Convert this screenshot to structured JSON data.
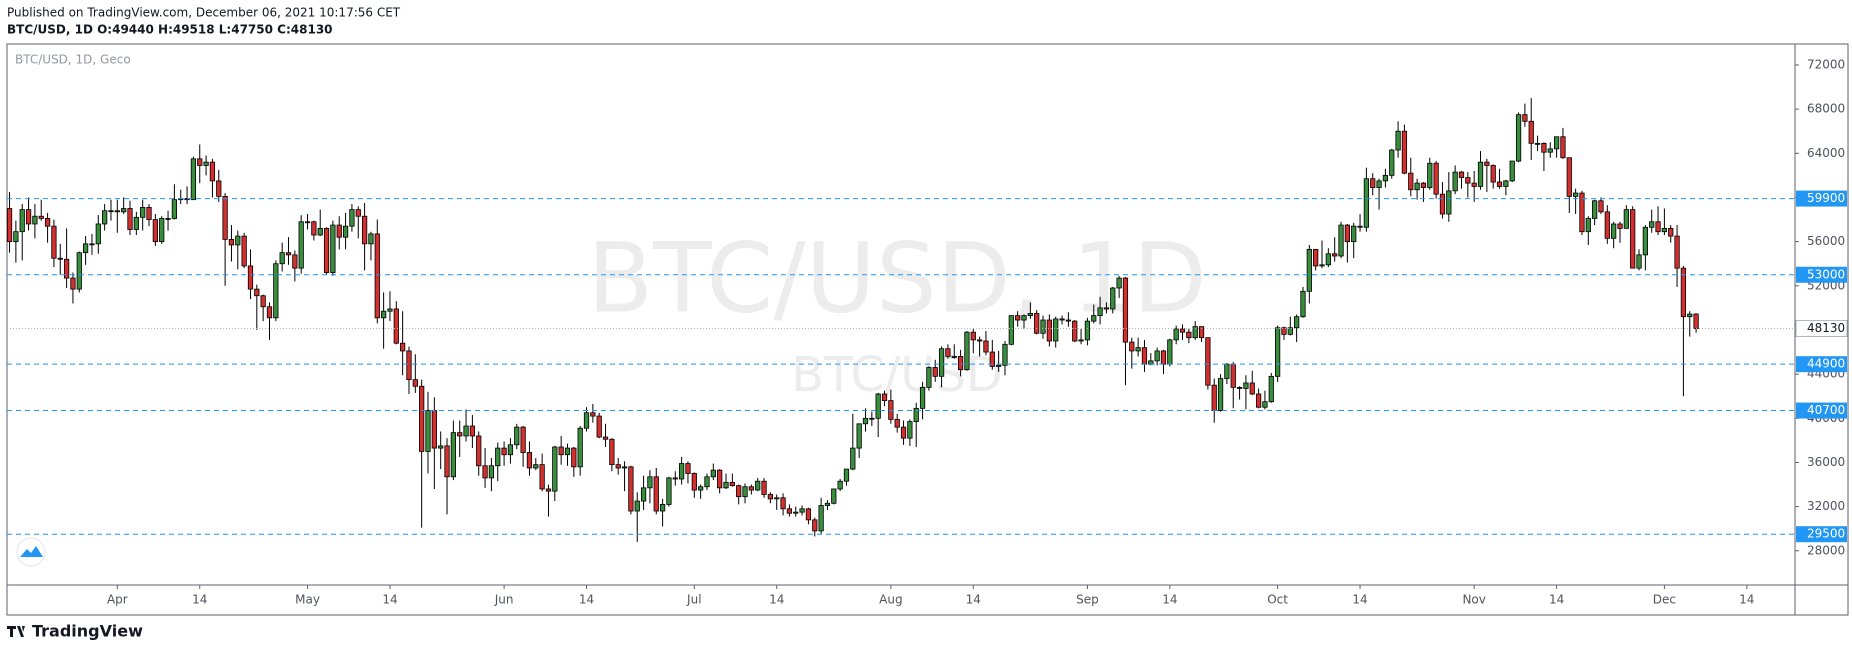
{
  "header": {
    "published": "Published on TradingView.com, December 06, 2021 10:17:56 CET",
    "ohlc_line": "BTC/USD, 1D  O:49440 H:49518 L:47750 C:48130"
  },
  "footer": {
    "brand": "TradingView"
  },
  "chart_data": {
    "type": "candlestick",
    "legend_text": "BTC/USD, 1D, Geco",
    "watermark": "BTC/USD, 1D",
    "watermark_sub": "BTC/USD",
    "up_color": "#388e3c",
    "down_color": "#d32f2f",
    "border_color": "#000000",
    "level_color": "#2196f3",
    "ylim": [
      24900,
      73900
    ],
    "yticks": [
      28000,
      32000,
      36000,
      40000,
      44000,
      48000,
      52000,
      56000,
      60000,
      64000,
      68000,
      72000
    ],
    "xlim": [
      -0.4,
      281.6
    ],
    "xticks": [
      {
        "value": 17,
        "label": "Apr"
      },
      {
        "value": 30,
        "label": "14"
      },
      {
        "value": 47,
        "label": "May"
      },
      {
        "value": 60,
        "label": "14"
      },
      {
        "value": 78,
        "label": "Jun"
      },
      {
        "value": 91,
        "label": "14"
      },
      {
        "value": 108,
        "label": "Jul"
      },
      {
        "value": 121,
        "label": "14"
      },
      {
        "value": 139,
        "label": "Aug"
      },
      {
        "value": 152,
        "label": "14"
      },
      {
        "value": 170,
        "label": "Sep"
      },
      {
        "value": 183,
        "label": "14"
      },
      {
        "value": 200,
        "label": "Oct"
      },
      {
        "value": 213,
        "label": "14"
      },
      {
        "value": 231,
        "label": "Nov"
      },
      {
        "value": 244,
        "label": "14"
      },
      {
        "value": 261,
        "label": "Dec"
      },
      {
        "value": 274,
        "label": "14"
      }
    ],
    "levels": [
      59900,
      53000,
      44900,
      40700,
      29500
    ],
    "open": [
      59000,
      56000,
      56900,
      58900,
      57600,
      58300,
      58100,
      57400,
      54500,
      54400,
      52700,
      51700,
      55000,
      55800,
      55800,
      57600,
      58800,
      58800,
      58700,
      59000,
      57100,
      58200,
      59100,
      58000,
      56000,
      58100,
      58100,
      59800,
      59900,
      59800,
      63500,
      62900,
      63200,
      61500,
      60100,
      56200,
      55700,
      56500,
      53800,
      51700,
      51100,
      50100,
      49100,
      54000,
      55000,
      54800,
      53600,
      57800,
      57800,
      56600,
      57200,
      53200,
      57500,
      56400,
      57400,
      58900,
      58300,
      55800,
      56700,
      49100,
      49700,
      49900,
      46800,
      46100,
      43500,
      42900,
      37000,
      40700,
      37300,
      37500,
      34700,
      38700,
      38400,
      39300,
      38400,
      35700,
      34600,
      35700,
      37300,
      36700,
      37600,
      39200,
      36900,
      35500,
      35800,
      33600,
      33400,
      37400,
      36700,
      37300,
      35600,
      39100,
      40500,
      40200,
      38300,
      38100,
      35800,
      35500,
      35600,
      31600,
      32500,
      33700,
      34700,
      31600,
      32200,
      34600,
      34500,
      35900,
      35000,
      33500,
      33800,
      34700,
      35300,
      33700,
      34200,
      33900,
      32900,
      33800,
      33500,
      34300,
      33100,
      32700,
      32800,
      31800,
      31400,
      31500,
      31800,
      30800,
      29800,
      32100,
      32300,
      33600,
      34300,
      35400,
      37300,
      39500,
      40000,
      40000,
      42200,
      41600,
      39900,
      39200,
      38200,
      39700,
      40900,
      42800,
      44600,
      43800,
      46300,
      45600,
      45600,
      44400,
      47800,
      47100,
      47000,
      46000,
      44700,
      44800,
      46700,
      49300,
      48900,
      49300,
      49500,
      47700,
      48900,
      47000,
      49000,
      48900,
      48800,
      47000,
      47100,
      48800,
      49300,
      50000,
      49900,
      51800,
      52700,
      46900,
      46100,
      46400,
      44900,
      45200,
      46100,
      44900,
      47100,
      48100,
      47800,
      47300,
      48300,
      47300,
      43000,
      40700,
      43600,
      44900,
      42800,
      42700,
      43200,
      42200,
      41000,
      41500,
      43800,
      48200,
      47600,
      48200,
      49200,
      51500,
      55300,
      53800,
      53900,
      54900,
      54700,
      57500,
      56000,
      57400,
      57300,
      61700,
      60900,
      61500,
      62000,
      64300,
      66000,
      62200,
      60700,
      61300,
      60900,
      63100,
      60300,
      58500,
      60600,
      62300,
      61800,
      61300,
      61000,
      63200,
      62900,
      61400,
      61000,
      61500,
      63300,
      67500,
      66900,
      64900,
      64900,
      64100,
      64400,
      65500,
      63600,
      60100,
      60400,
      56900,
      58100,
      59700,
      58700,
      56300,
      57600,
      57200,
      58900,
      53600,
      54800,
      57300,
      57800,
      56900,
      57200,
      56500,
      53600,
      49200,
      49440
    ],
    "high": [
      60500,
      57900,
      59400,
      60000,
      59400,
      59800,
      58600,
      58000,
      55800,
      57200,
      53200,
      55100,
      56500,
      56700,
      58400,
      59400,
      59800,
      59800,
      60000,
      59700,
      58700,
      59800,
      59400,
      58500,
      58300,
      58800,
      61200,
      60700,
      61000,
      63700,
      64800,
      63800,
      63500,
      62500,
      60400,
      57500,
      57000,
      56800,
      55300,
      52100,
      51200,
      50500,
      54300,
      55900,
      56400,
      55200,
      58400,
      58500,
      57900,
      58900,
      57300,
      57900,
      58300,
      58600,
      59400,
      59200,
      59500,
      56900,
      58000,
      51400,
      51500,
      50600,
      49700,
      46500,
      45800,
      43500,
      42400,
      41900,
      38800,
      38200,
      39800,
      39800,
      40800,
      40300,
      38800,
      37300,
      36400,
      37800,
      37900,
      38200,
      39500,
      39300,
      37900,
      36400,
      36800,
      34000,
      37500,
      38400,
      37700,
      37400,
      39300,
      41000,
      41300,
      40500,
      39500,
      38200,
      36400,
      36100,
      35700,
      33300,
      34800,
      35300,
      35500,
      32700,
      34700,
      35200,
      36500,
      36100,
      35100,
      34000,
      35000,
      35900,
      35400,
      35000,
      35000,
      34000,
      34100,
      34000,
      34600,
      34600,
      33300,
      33100,
      33200,
      32200,
      32000,
      32100,
      31900,
      31000,
      32800,
      32600,
      33600,
      34500,
      35400,
      40400,
      39500,
      40900,
      40600,
      42300,
      42500,
      42600,
      40400,
      39800,
      39900,
      41400,
      43300,
      44700,
      45300,
      46500,
      46700,
      46700,
      46200,
      47900,
      48100,
      47400,
      47900,
      47100,
      46100,
      47000,
      49300,
      49700,
      49400,
      50500,
      49800,
      49300,
      49400,
      49200,
      49300,
      49600,
      48900,
      48100,
      49100,
      50300,
      51000,
      50500,
      51900,
      52900,
      52800,
      47300,
      47300,
      47100,
      45900,
      46400,
      46200,
      47200,
      48400,
      48500,
      48100,
      48800,
      48300,
      47300,
      43600,
      44000,
      45000,
      45100,
      42900,
      43900,
      44300,
      42700,
      42500,
      44100,
      48400,
      48300,
      49200,
      49400,
      51900,
      55700,
      55300,
      56100,
      55400,
      56400,
      57800,
      57600,
      57700,
      58500,
      62700,
      62200,
      61700,
      62600,
      64400,
      66900,
      66600,
      63600,
      61700,
      61400,
      63600,
      63300,
      61400,
      62300,
      62900,
      62400,
      62300,
      62400,
      64200,
      63500,
      63000,
      62600,
      61600,
      63300,
      67700,
      68500,
      69000,
      65600,
      65000,
      65000,
      65500,
      66300,
      63600,
      60800,
      60600,
      58300,
      59800,
      60000,
      59300,
      57800,
      57800,
      59300,
      59200,
      55300,
      57500,
      58900,
      59200,
      59000,
      57500,
      57500,
      53800,
      49700,
      49518
    ],
    "low": [
      55000,
      54100,
      54300,
      57000,
      56300,
      57900,
      55900,
      53700,
      53000,
      51800,
      50400,
      51400,
      53900,
      54800,
      54900,
      57000,
      57900,
      56800,
      58500,
      56600,
      56600,
      57000,
      57400,
      55600,
      55800,
      57000,
      58000,
      59400,
      59400,
      59800,
      61300,
      62000,
      60000,
      59600,
      52000,
      54200,
      53500,
      53600,
      50800,
      48000,
      48800,
      47100,
      48800,
      53300,
      53900,
      52400,
      53100,
      57100,
      56100,
      56500,
      53000,
      52900,
      55300,
      55300,
      56900,
      56300,
      53400,
      54300,
      48600,
      46300,
      48800,
      46700,
      43900,
      42200,
      42300,
      30100,
      35000,
      33600,
      35400,
      31300,
      34400,
      36500,
      37900,
      37300,
      34800,
      33700,
      33400,
      34300,
      35700,
      35900,
      37200,
      35600,
      34800,
      35300,
      33400,
      31100,
      32500,
      35800,
      35700,
      34700,
      34800,
      38800,
      39600,
      38200,
      37400,
      35200,
      34900,
      33400,
      31300,
      28800,
      31700,
      32300,
      31300,
      30200,
      32000,
      33900,
      34000,
      34100,
      32800,
      32700,
      33500,
      34400,
      33200,
      33600,
      33800,
      32200,
      32300,
      33100,
      33400,
      32800,
      32300,
      31700,
      31200,
      31100,
      31100,
      31200,
      30400,
      29300,
      29500,
      31700,
      32200,
      33400,
      33900,
      35300,
      36400,
      38800,
      39300,
      38300,
      41100,
      39500,
      38700,
      37600,
      37500,
      37400,
      39900,
      42500,
      43300,
      42800,
      45400,
      45400,
      43800,
      44300,
      45900,
      45600,
      45700,
      44400,
      44200,
      43900,
      46600,
      48300,
      48100,
      49000,
      47600,
      47200,
      46500,
      46400,
      48500,
      48300,
      46900,
      46700,
      46600,
      48600,
      48500,
      49500,
      49500,
      50900,
      43000,
      44500,
      45600,
      44200,
      44800,
      44800,
      44000,
      44700,
      46700,
      47100,
      46800,
      47100,
      46900,
      42600,
      39600,
      40600,
      43100,
      40900,
      41700,
      40800,
      42100,
      40900,
      40800,
      41400,
      43300,
      47100,
      47500,
      46900,
      49100,
      50400,
      53400,
      53600,
      53700,
      54200,
      54500,
      54100,
      54500,
      56900,
      56900,
      60200,
      58900,
      60900,
      61700,
      63600,
      62100,
      60100,
      59800,
      59600,
      60700,
      59900,
      58100,
      57800,
      60300,
      60800,
      60000,
      59600,
      60700,
      60500,
      60800,
      60800,
      60200,
      61400,
      63200,
      66400,
      63400,
      64200,
      62400,
      63600,
      63600,
      63500,
      58600,
      58500,
      56600,
      55700,
      57500,
      58500,
      55800,
      55400,
      55900,
      57200,
      53600,
      53400,
      53400,
      56800,
      56600,
      56600,
      55900,
      51900,
      42000,
      47400,
      47750
    ],
    "close": [
      56000,
      56900,
      58900,
      57600,
      58300,
      58100,
      57400,
      54500,
      54400,
      52700,
      51700,
      55000,
      55800,
      55800,
      57600,
      58800,
      58800,
      58700,
      59000,
      57100,
      58200,
      59100,
      58000,
      56000,
      58100,
      58100,
      59800,
      59900,
      59800,
      63500,
      62900,
      63200,
      61500,
      60100,
      56200,
      55700,
      56500,
      53800,
      51700,
      51100,
      50100,
      49100,
      54000,
      55000,
      54800,
      53600,
      57800,
      57800,
      56600,
      57200,
      53200,
      57500,
      56400,
      57400,
      58900,
      58300,
      55800,
      56700,
      49100,
      49700,
      49900,
      46800,
      46100,
      43500,
      42900,
      37000,
      40700,
      37300,
      37500,
      34700,
      38700,
      38400,
      39300,
      38400,
      35700,
      34600,
      35700,
      37300,
      36700,
      37600,
      39200,
      36900,
      35500,
      35800,
      33600,
      33400,
      37400,
      36700,
      37300,
      35600,
      39100,
      40500,
      40200,
      38300,
      38100,
      35800,
      35500,
      35600,
      31600,
      32500,
      33700,
      34700,
      31600,
      32200,
      34600,
      34500,
      35900,
      35000,
      33500,
      33800,
      34700,
      35300,
      33700,
      34200,
      33900,
      32900,
      33800,
      33500,
      34300,
      33100,
      32700,
      32800,
      31800,
      31400,
      31500,
      31800,
      30800,
      29800,
      32100,
      32300,
      33600,
      34300,
      35400,
      37300,
      39500,
      40000,
      40000,
      42200,
      41600,
      39900,
      39200,
      38200,
      39700,
      40900,
      42800,
      44600,
      43800,
      46300,
      45600,
      45600,
      44400,
      47800,
      47100,
      47000,
      46000,
      44700,
      44800,
      46700,
      49300,
      48900,
      49300,
      49500,
      47700,
      48900,
      47000,
      49000,
      48900,
      48800,
      47000,
      47100,
      48800,
      49300,
      50000,
      49900,
      51800,
      52700,
      46900,
      46100,
      46400,
      44900,
      45200,
      46100,
      44900,
      47100,
      48100,
      47800,
      47300,
      48300,
      47300,
      43000,
      40700,
      43600,
      44900,
      42800,
      42700,
      43200,
      42200,
      41000,
      41500,
      43800,
      48200,
      47600,
      48200,
      49200,
      51500,
      55300,
      53800,
      53900,
      54900,
      54700,
      57500,
      56000,
      57400,
      57300,
      61700,
      60900,
      61500,
      62000,
      64300,
      66000,
      62200,
      60700,
      61300,
      60900,
      63100,
      60300,
      58500,
      60600,
      62300,
      61800,
      61300,
      61000,
      63200,
      62900,
      61400,
      61000,
      61500,
      63300,
      67500,
      66900,
      64900,
      64900,
      64100,
      64400,
      65500,
      63600,
      60100,
      60400,
      56900,
      58100,
      59700,
      58700,
      56300,
      57600,
      57200,
      58900,
      53600,
      54800,
      57300,
      57800,
      56900,
      57200,
      56500,
      53600,
      49200,
      49440,
      48130
    ]
  }
}
